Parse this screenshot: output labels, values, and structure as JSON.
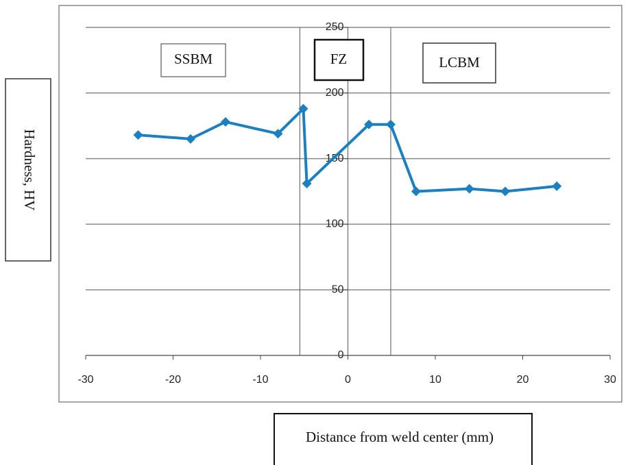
{
  "chart_data": {
    "type": "line",
    "x_label": "Distance from weld center (mm)",
    "y_label": "Hardness, HV",
    "annotations": [
      "SSBM",
      "FZ",
      "LCBM"
    ],
    "zone_boundaries": [
      -5.5,
      4.9
    ],
    "x": [
      -24,
      -18,
      -14,
      -8,
      -5.1,
      -4.7,
      2.4,
      4.9,
      7.8,
      13.9,
      18,
      23.9
    ],
    "series": [
      {
        "color": "#1b7fc0",
        "values": [
          168,
          165,
          178,
          169,
          188,
          131,
          176,
          176,
          125,
          127,
          125,
          129
        ]
      }
    ],
    "xlim": [
      -30,
      30
    ],
    "xticks": [
      -30,
      -20,
      -10,
      0,
      10,
      20,
      30
    ],
    "ylim": [
      0,
      250
    ],
    "yticks": [
      0,
      50,
      100,
      150,
      200,
      250
    ],
    "grid": true
  }
}
